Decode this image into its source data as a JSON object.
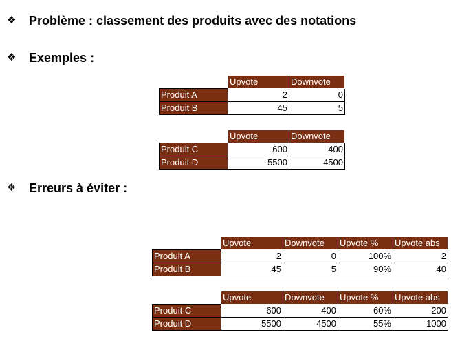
{
  "bullet_glyph": "❖",
  "headings": {
    "problem": "Problème : classement des produits avec des notations",
    "examples": "Exemples :",
    "errors": "Erreurs à éviter :"
  },
  "colors": {
    "header_fill": "#7b2f12",
    "header_text": "#ffffff"
  },
  "example_table_1": {
    "columns": [
      "Upvote",
      "Downvote"
    ],
    "rows": [
      {
        "label": "Produit A",
        "values": [
          "2",
          "0"
        ]
      },
      {
        "label": "Produit B",
        "values": [
          "45",
          "5"
        ]
      }
    ]
  },
  "example_table_2": {
    "columns": [
      "Upvote",
      "Downvote"
    ],
    "rows": [
      {
        "label": "Produit C",
        "values": [
          "600",
          "400"
        ]
      },
      {
        "label": "Produit D",
        "values": [
          "5500",
          "4500"
        ]
      }
    ]
  },
  "error_table_1": {
    "columns": [
      "Upvote",
      "Downvote",
      "Upvote %",
      "Upvote abs"
    ],
    "rows": [
      {
        "label": "Produit A",
        "values": [
          "2",
          "0",
          "100%",
          "2"
        ]
      },
      {
        "label": "Produit B",
        "values": [
          "45",
          "5",
          "90%",
          "40"
        ]
      }
    ]
  },
  "error_table_2": {
    "columns": [
      "Upvote",
      "Downvote",
      "Upvote %",
      "Upvote abs"
    ],
    "rows": [
      {
        "label": "Produit C",
        "values": [
          "600",
          "400",
          "60%",
          "200"
        ]
      },
      {
        "label": "Produit D",
        "values": [
          "5500",
          "4500",
          "55%",
          "1000"
        ]
      }
    ]
  }
}
